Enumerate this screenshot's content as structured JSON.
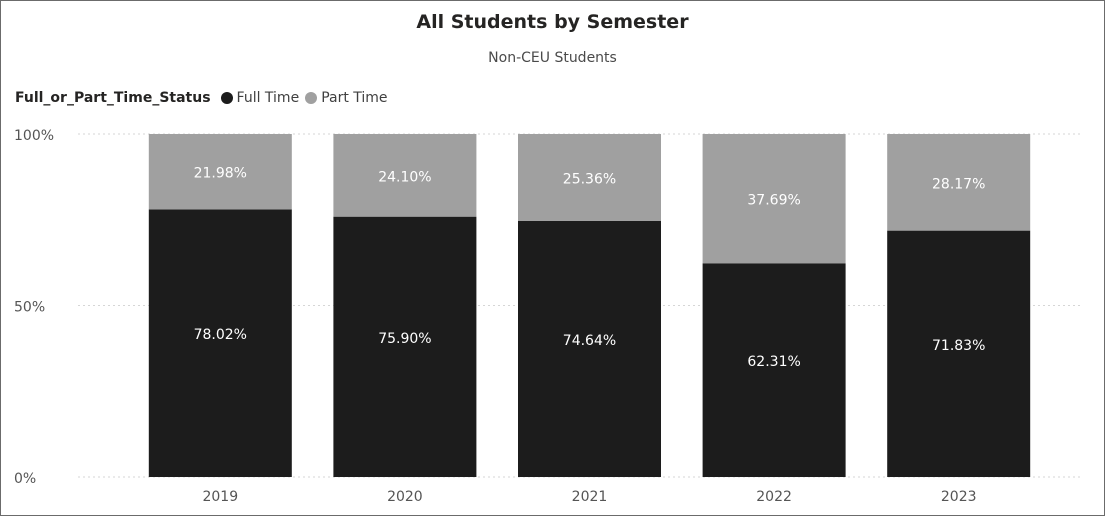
{
  "title": "All Students by Semester",
  "subtitle": "Non-CEU Students",
  "legend": {
    "title": "Full_or_Part_Time_Status",
    "items": [
      {
        "label": "Full Time",
        "color": "#1c1c1c"
      },
      {
        "label": "Part Time",
        "color": "#a0a0a0"
      }
    ]
  },
  "chart_data": {
    "type": "bar",
    "stacked": "100%",
    "title": "All Students by Semester",
    "subtitle": "Non-CEU Students",
    "categories": [
      "2019",
      "2020",
      "2021",
      "2022",
      "2023"
    ],
    "series": [
      {
        "name": "Full Time",
        "values": [
          78.02,
          75.9,
          74.64,
          62.31,
          71.83
        ],
        "labels": [
          "78.02%",
          "75.90%",
          "74.64%",
          "62.31%",
          "71.83%"
        ],
        "color": "#1c1c1c",
        "label_color": "#ffffff"
      },
      {
        "name": "Part Time",
        "values": [
          21.98,
          24.1,
          25.36,
          37.69,
          28.17
        ],
        "labels": [
          "21.98%",
          "24.10%",
          "25.36%",
          "37.69%",
          "28.17%"
        ],
        "color": "#a0a0a0",
        "label_color": "#ffffff"
      }
    ],
    "y_ticks": [
      "0%",
      "50%",
      "100%"
    ],
    "y_tick_values": [
      0,
      50,
      100
    ],
    "ylim": [
      0,
      100
    ],
    "grid": true,
    "legend_position": "top-left"
  }
}
